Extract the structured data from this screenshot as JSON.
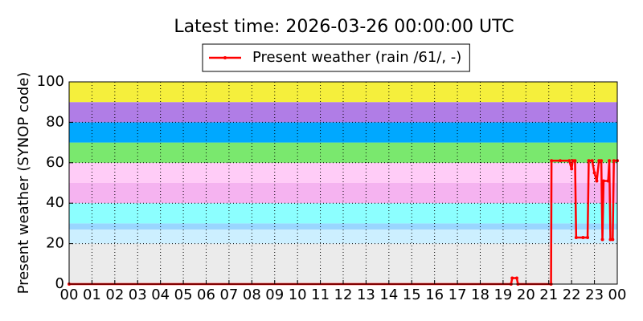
{
  "chart_data": {
    "type": "line",
    "title": "Latest time: 2026-03-26 00:00:00 UTC",
    "y_label": "Present weather (SYNOP code)",
    "xlim": [
      0,
      24
    ],
    "xticks": [
      {
        "value": 0,
        "label": "00"
      },
      {
        "value": 1,
        "label": "01"
      },
      {
        "value": 2,
        "label": "02"
      },
      {
        "value": 3,
        "label": "03"
      },
      {
        "value": 4,
        "label": "04"
      },
      {
        "value": 5,
        "label": "05"
      },
      {
        "value": 6,
        "label": "06"
      },
      {
        "value": 7,
        "label": "07"
      },
      {
        "value": 8,
        "label": "08"
      },
      {
        "value": 9,
        "label": "09"
      },
      {
        "value": 10,
        "label": "10"
      },
      {
        "value": 11,
        "label": "11"
      },
      {
        "value": 12,
        "label": "12"
      },
      {
        "value": 13,
        "label": "13"
      },
      {
        "value": 14,
        "label": "14"
      },
      {
        "value": 15,
        "label": "15"
      },
      {
        "value": 16,
        "label": "16"
      },
      {
        "value": 17,
        "label": "17"
      },
      {
        "value": 18,
        "label": "18"
      },
      {
        "value": 19,
        "label": "19"
      },
      {
        "value": 20,
        "label": "20"
      },
      {
        "value": 21,
        "label": "21"
      },
      {
        "value": 22,
        "label": "22"
      },
      {
        "value": 23,
        "label": "23"
      },
      {
        "value": 24,
        "label": "00"
      }
    ],
    "ylim": [
      0,
      100
    ],
    "yticks": [
      0,
      20,
      40,
      60,
      80,
      100
    ],
    "grid": true,
    "legend_position": "top",
    "bands": [
      {
        "from": 0,
        "to": 20,
        "color": "#ebebeb"
      },
      {
        "from": 20,
        "to": 27,
        "color": "#ccefff"
      },
      {
        "from": 27,
        "to": 30,
        "color": "#99d6ff"
      },
      {
        "from": 30,
        "to": 40,
        "color": "#8cffff"
      },
      {
        "from": 40,
        "to": 50,
        "color": "#f5b3f0"
      },
      {
        "from": 50,
        "to": 60,
        "color": "#ffccf7"
      },
      {
        "from": 60,
        "to": 70,
        "color": "#7ae86e"
      },
      {
        "from": 70,
        "to": 80,
        "color": "#00a8ff"
      },
      {
        "from": 80,
        "to": 90,
        "color": "#b07de6"
      },
      {
        "from": 90,
        "to": 100,
        "color": "#f5ef3c"
      }
    ],
    "x": [
      0,
      19.35,
      19.4,
      19.6,
      19.65,
      21.1,
      21.12,
      21.5,
      21.9,
      22.0,
      22.05,
      22.15,
      22.2,
      22.5,
      22.7,
      22.75,
      22.9,
      23.0,
      23.1,
      23.2,
      23.3,
      23.35,
      23.4,
      23.6,
      23.65,
      23.7,
      23.8,
      23.85,
      24
    ],
    "series": [
      {
        "name": "Present weather (rain /61/, -)",
        "color": "#ff0000",
        "values": [
          0,
          0,
          3,
          3,
          0,
          0,
          61,
          61,
          61,
          57,
          61,
          61,
          23,
          23,
          23,
          61,
          61,
          55,
          51,
          61,
          61,
          22,
          51,
          51,
          61,
          22,
          22,
          61,
          61
        ]
      }
    ]
  }
}
